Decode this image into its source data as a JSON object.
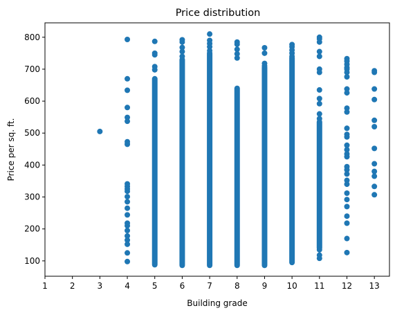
{
  "chart_data": {
    "type": "scatter",
    "title": "Price distribution",
    "xlabel": "Building grade",
    "ylabel": "Price per sq. ft.",
    "xlim": [
      1,
      13.55
    ],
    "ylim": [
      52,
      845
    ],
    "xticks": [
      1,
      2,
      3,
      4,
      5,
      6,
      7,
      8,
      9,
      10,
      11,
      12,
      13
    ],
    "yticks": [
      100,
      200,
      300,
      400,
      500,
      600,
      700,
      800
    ],
    "grid": false,
    "legend": "none",
    "marker_color": "#1f77b4",
    "series": [
      {
        "points": [
          {
            "x": 3,
            "y": 505
          },
          {
            "x": 4,
            "y": 793
          },
          {
            "x": 4,
            "y": 670
          },
          {
            "x": 4,
            "y": 634
          },
          {
            "x": 4,
            "y": 580
          },
          {
            "x": 4,
            "y": 549
          },
          {
            "x": 4,
            "y": 537
          },
          {
            "x": 4,
            "y": 473
          },
          {
            "x": 4,
            "y": 465
          },
          {
            "x": 4,
            "y": 341
          },
          {
            "x": 4,
            "y": 333
          },
          {
            "x": 4,
            "y": 325
          },
          {
            "x": 4,
            "y": 318
          },
          {
            "x": 4,
            "y": 301
          },
          {
            "x": 4,
            "y": 285
          },
          {
            "x": 4,
            "y": 265
          },
          {
            "x": 4,
            "y": 244
          },
          {
            "x": 4,
            "y": 218
          },
          {
            "x": 4,
            "y": 210
          },
          {
            "x": 4,
            "y": 195
          },
          {
            "x": 4,
            "y": 178
          },
          {
            "x": 4,
            "y": 165
          },
          {
            "x": 4,
            "y": 152
          },
          {
            "x": 4,
            "y": 125
          },
          {
            "x": 4,
            "y": 98
          },
          {
            "x": 5,
            "y": 787
          },
          {
            "x": 5,
            "y": 750
          },
          {
            "x": 5,
            "y": 745
          },
          {
            "x": 5,
            "y": 708
          },
          {
            "x": 5,
            "y": 698
          },
          {
            "x": 6,
            "y": 792
          },
          {
            "x": 6,
            "y": 785
          },
          {
            "x": 6,
            "y": 768
          },
          {
            "x": 6,
            "y": 755
          },
          {
            "x": 6,
            "y": 740
          },
          {
            "x": 7,
            "y": 810
          },
          {
            "x": 7,
            "y": 790
          },
          {
            "x": 7,
            "y": 780
          },
          {
            "x": 7,
            "y": 770
          },
          {
            "x": 7,
            "y": 758
          },
          {
            "x": 8,
            "y": 785
          },
          {
            "x": 8,
            "y": 778
          },
          {
            "x": 8,
            "y": 762
          },
          {
            "x": 8,
            "y": 748
          },
          {
            "x": 8,
            "y": 735
          },
          {
            "x": 9,
            "y": 767
          },
          {
            "x": 9,
            "y": 750
          },
          {
            "x": 9,
            "y": 718
          },
          {
            "x": 9,
            "y": 710
          },
          {
            "x": 10,
            "y": 777
          },
          {
            "x": 10,
            "y": 770
          },
          {
            "x": 10,
            "y": 760
          },
          {
            "x": 10,
            "y": 750
          },
          {
            "x": 10,
            "y": 740
          },
          {
            "x": 11,
            "y": 800
          },
          {
            "x": 11,
            "y": 795
          },
          {
            "x": 11,
            "y": 785
          },
          {
            "x": 11,
            "y": 755
          },
          {
            "x": 11,
            "y": 740
          },
          {
            "x": 11,
            "y": 700
          },
          {
            "x": 11,
            "y": 690
          },
          {
            "x": 11,
            "y": 635
          },
          {
            "x": 11,
            "y": 608
          },
          {
            "x": 11,
            "y": 592
          },
          {
            "x": 11,
            "y": 560
          },
          {
            "x": 11,
            "y": 545
          },
          {
            "x": 11,
            "y": 108
          },
          {
            "x": 11,
            "y": 118
          },
          {
            "x": 11,
            "y": 135
          },
          {
            "x": 12,
            "y": 733
          },
          {
            "x": 12,
            "y": 725
          },
          {
            "x": 12,
            "y": 715
          },
          {
            "x": 12,
            "y": 705
          },
          {
            "x": 12,
            "y": 700
          },
          {
            "x": 12,
            "y": 690
          },
          {
            "x": 12,
            "y": 676
          },
          {
            "x": 12,
            "y": 638
          },
          {
            "x": 12,
            "y": 626
          },
          {
            "x": 12,
            "y": 578
          },
          {
            "x": 12,
            "y": 566
          },
          {
            "x": 12,
            "y": 515
          },
          {
            "x": 12,
            "y": 496
          },
          {
            "x": 12,
            "y": 488
          },
          {
            "x": 12,
            "y": 462
          },
          {
            "x": 12,
            "y": 448
          },
          {
            "x": 12,
            "y": 435
          },
          {
            "x": 12,
            "y": 426
          },
          {
            "x": 12,
            "y": 395
          },
          {
            "x": 12,
            "y": 385
          },
          {
            "x": 12,
            "y": 372
          },
          {
            "x": 12,
            "y": 352
          },
          {
            "x": 12,
            "y": 340
          },
          {
            "x": 12,
            "y": 312
          },
          {
            "x": 12,
            "y": 292
          },
          {
            "x": 12,
            "y": 270
          },
          {
            "x": 12,
            "y": 240
          },
          {
            "x": 12,
            "y": 218
          },
          {
            "x": 12,
            "y": 170
          },
          {
            "x": 12,
            "y": 126
          },
          {
            "x": 13,
            "y": 695
          },
          {
            "x": 13,
            "y": 690
          },
          {
            "x": 13,
            "y": 638
          },
          {
            "x": 13,
            "y": 605
          },
          {
            "x": 13,
            "y": 540
          },
          {
            "x": 13,
            "y": 520
          },
          {
            "x": 13,
            "y": 452
          },
          {
            "x": 13,
            "y": 404
          },
          {
            "x": 13,
            "y": 380
          },
          {
            "x": 13,
            "y": 365
          },
          {
            "x": 13,
            "y": 333
          },
          {
            "x": 13,
            "y": 307
          }
        ]
      }
    ],
    "dense_ranges": [
      {
        "x": 5,
        "y_min": 88,
        "y_max": 670
      },
      {
        "x": 6,
        "y_min": 86,
        "y_max": 730
      },
      {
        "x": 7,
        "y_min": 86,
        "y_max": 750
      },
      {
        "x": 8,
        "y_min": 86,
        "y_max": 640
      },
      {
        "x": 9,
        "y_min": 86,
        "y_max": 705
      },
      {
        "x": 10,
        "y_min": 95,
        "y_max": 735
      },
      {
        "x": 11,
        "y_min": 140,
        "y_max": 535
      }
    ]
  }
}
